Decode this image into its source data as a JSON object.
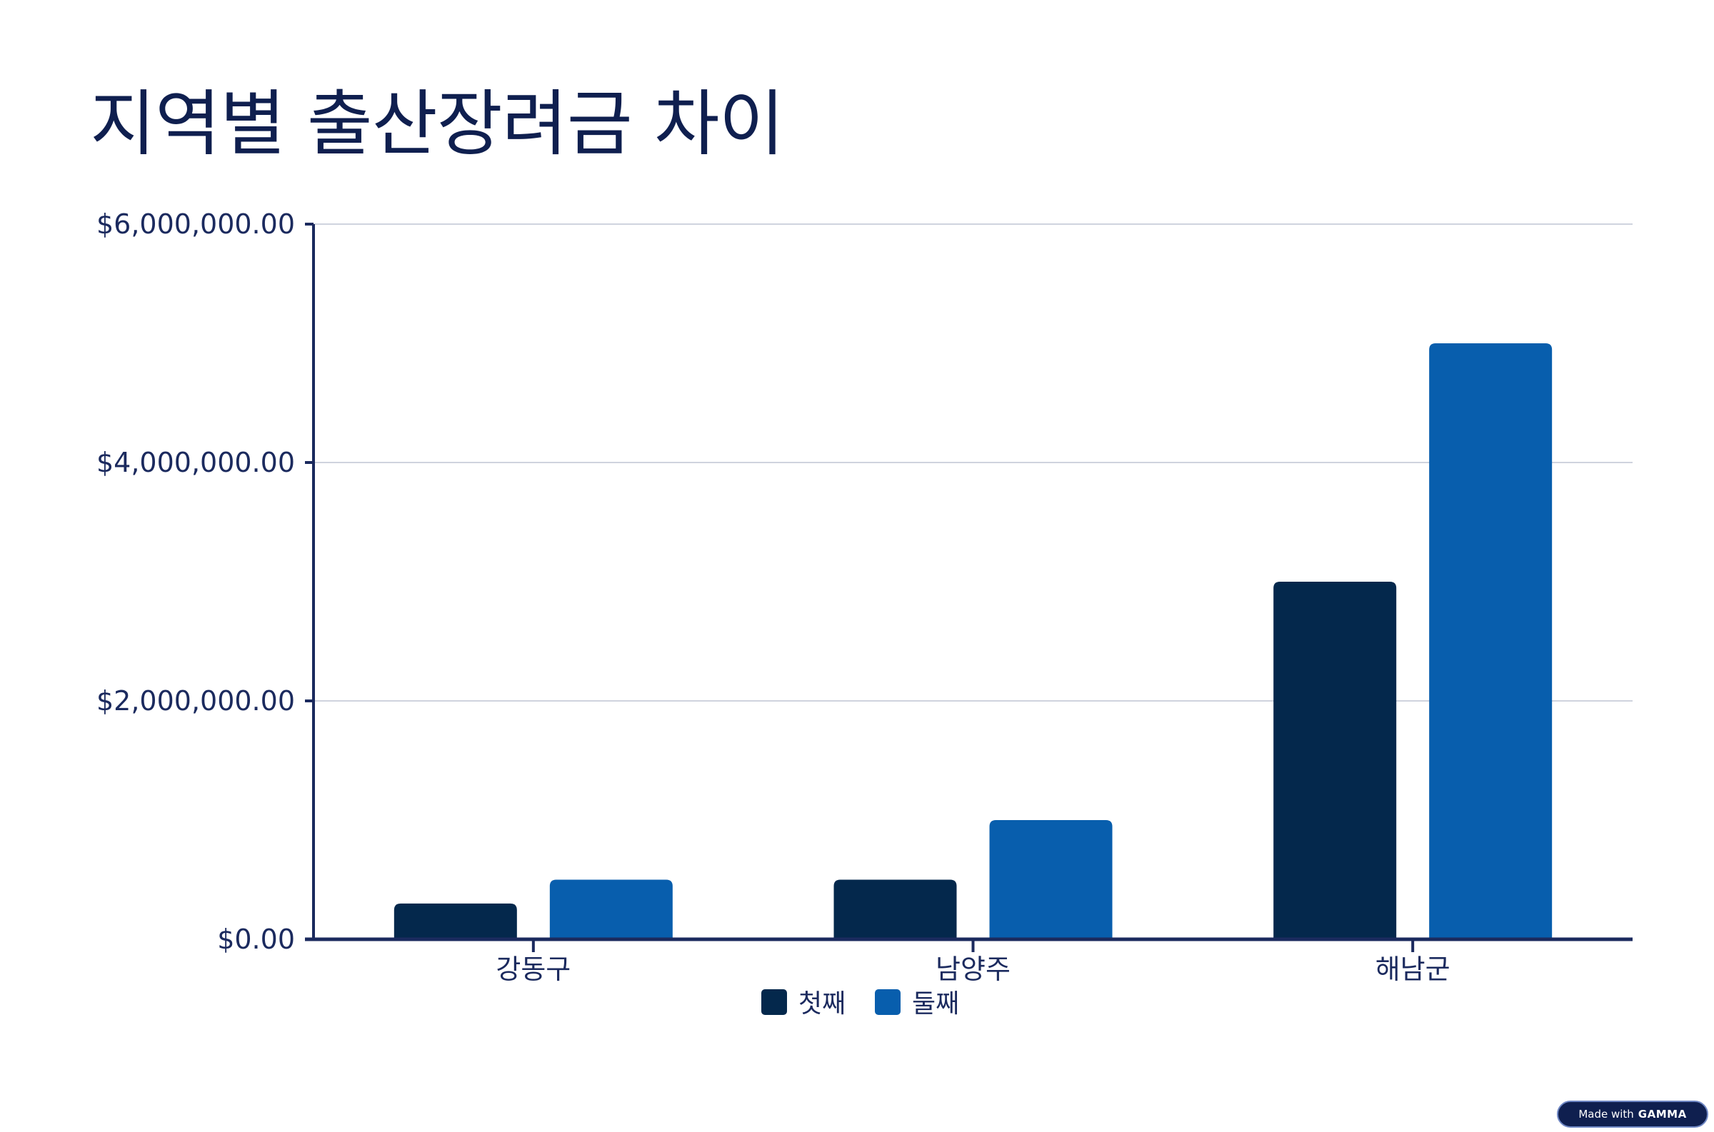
{
  "page": {
    "title": "지역별 출산장려금 차이"
  },
  "badge": {
    "prefix": "Made with",
    "brand": "GAMMA"
  },
  "colors": {
    "first": "#04284c",
    "second": "#085ead",
    "axis": "#1b2a5e",
    "grid": "#cfd3de"
  },
  "chart_data": {
    "type": "bar",
    "title": "",
    "xlabel": "",
    "ylabel": "",
    "categories": [
      "강동구",
      "남양주",
      "해남군"
    ],
    "series": [
      {
        "name": "첫째",
        "values": [
          300000,
          500000,
          3000000
        ]
      },
      {
        "name": "둘째",
        "values": [
          500000,
          1000000,
          5000000
        ]
      }
    ],
    "ylim": [
      0,
      6000000
    ],
    "yticks": [
      0,
      2000000,
      4000000,
      6000000
    ],
    "ytick_labels": [
      "$0.00",
      "$2,000,000.00",
      "$4,000,000.00",
      "$6,000,000.00"
    ],
    "grid": true,
    "legend_position": "bottom-center"
  }
}
